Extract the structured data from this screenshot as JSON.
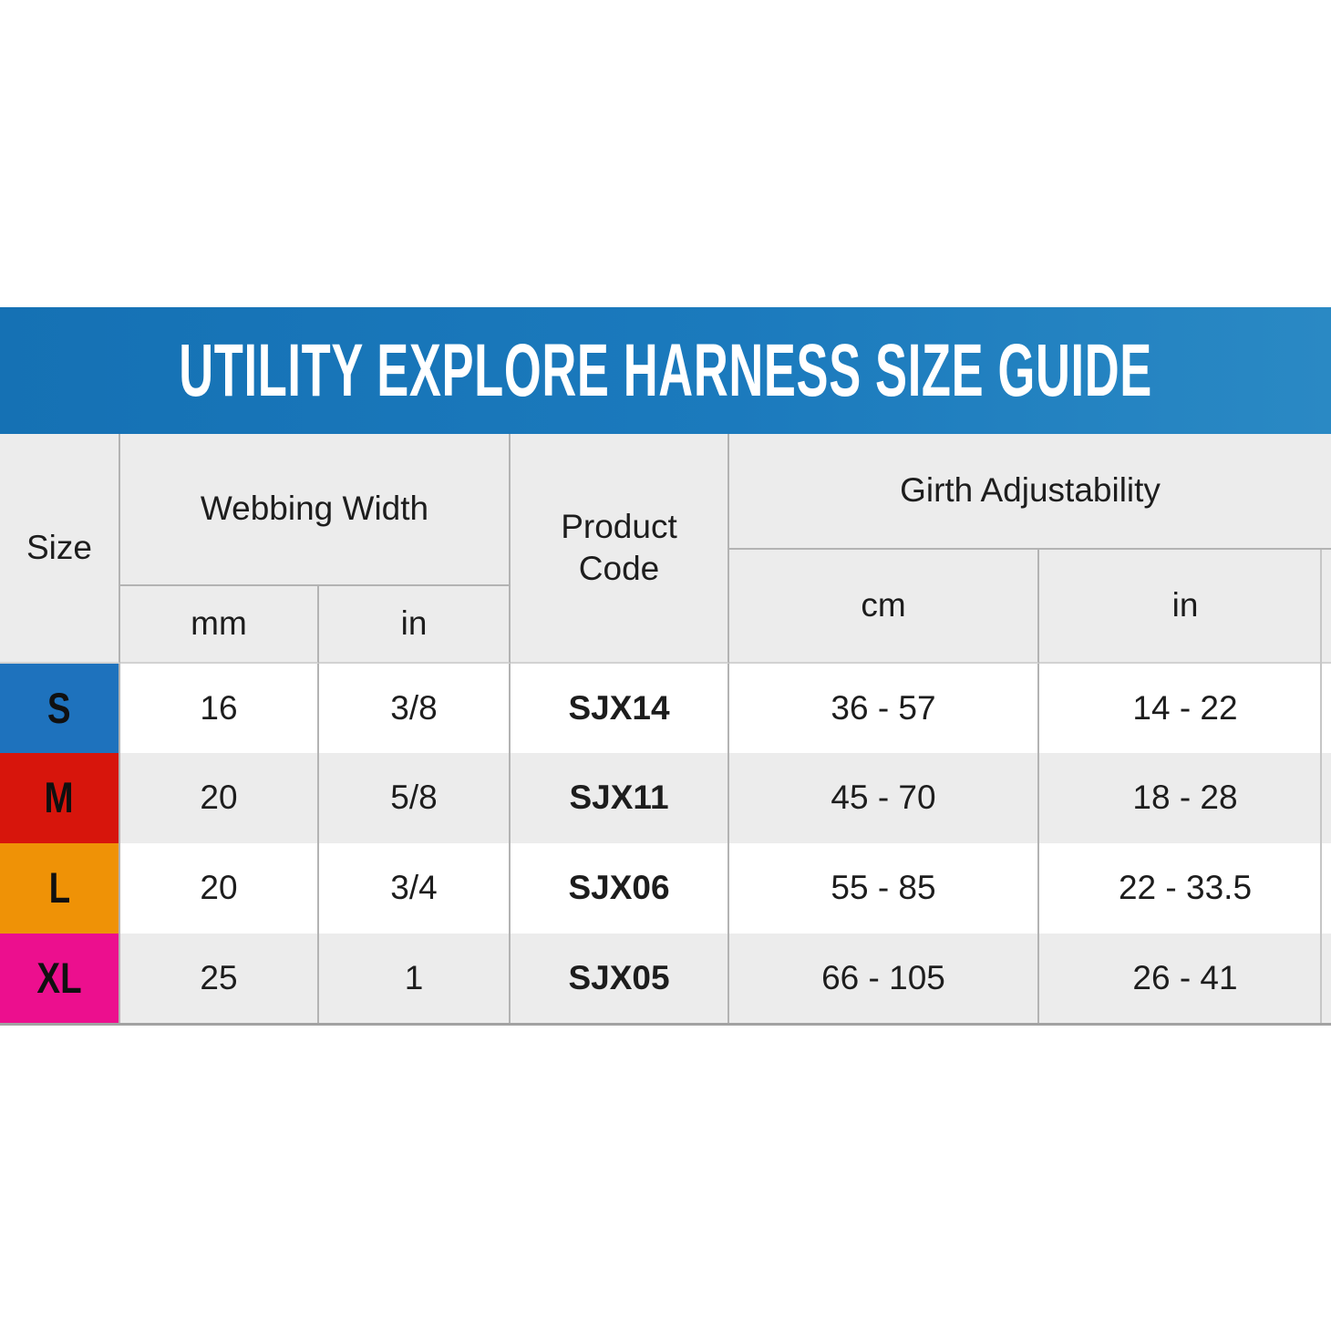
{
  "banner": {
    "title": "UTILITY EXPLORE HARNESS SIZE GUIDE"
  },
  "colors": {
    "banner_left": "#1571b4",
    "banner_mid": "#1b7abd",
    "banner_right": "#2a89c4",
    "size_s": "#1e72bd",
    "size_m": "#d7150c",
    "size_l": "#ef9206",
    "size_xl": "#ec0f8e",
    "header_bg": "#ececec",
    "alt_row_bg": "#ececec",
    "grid_line": "#b3b3b3",
    "text": "#1d1d1d"
  },
  "table": {
    "headers": {
      "size": "Size",
      "webbing_width": "Webbing Width",
      "webbing_mm": "mm",
      "webbing_in": "in",
      "product_code": "Product Code",
      "girth": "Girth Adjustability",
      "girth_cm": "cm",
      "girth_in": "in"
    },
    "rows": [
      {
        "size": "S",
        "mm": "16",
        "in": "3/8",
        "code": "SJX14",
        "girth_cm": "36 - 57",
        "girth_in": "14 - 22"
      },
      {
        "size": "M",
        "mm": "20",
        "in": "5/8",
        "code": "SJX11",
        "girth_cm": "45 - 70",
        "girth_in": "18 - 28"
      },
      {
        "size": "L",
        "mm": "20",
        "in": "3/4",
        "code": "SJX06",
        "girth_cm": "55 - 85",
        "girth_in": "22 - 33.5"
      },
      {
        "size": "XL",
        "mm": "25",
        "in": "1",
        "code": "SJX05",
        "girth_cm": "66 - 105",
        "girth_in": "26 - 41"
      }
    ]
  },
  "chart_data": {
    "type": "table",
    "title": "UTILITY EXPLORE HARNESS SIZE GUIDE",
    "columns": [
      "Size",
      "Webbing Width mm",
      "Webbing Width in",
      "Product Code",
      "Girth Adjustability cm",
      "Girth Adjustability in"
    ],
    "rows": [
      [
        "S",
        "16",
        "3/8",
        "SJX14",
        "36 - 57",
        "14 - 22"
      ],
      [
        "M",
        "20",
        "5/8",
        "SJX11",
        "45 - 70",
        "18 - 28"
      ],
      [
        "L",
        "20",
        "3/4",
        "SJX06",
        "55 - 85",
        "22 - 33.5"
      ],
      [
        "XL",
        "25",
        "1",
        "SJX05",
        "66 - 105",
        "26 - 41"
      ]
    ],
    "row_swatch_colors": [
      "#1e72bd",
      "#d7150c",
      "#ef9206",
      "#ec0f8e"
    ]
  }
}
